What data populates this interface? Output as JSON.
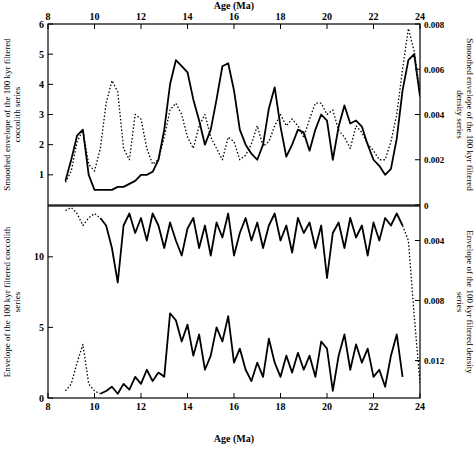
{
  "chart_data": [
    {
      "type": "line",
      "x_label": "Age (Ma)",
      "y_label": "Smoothed envelope of the 100 kyr filtered coccolith series",
      "y2_label": "Smoothed envelope of the 100 kyr filtered density series",
      "x": [
        8.75,
        9,
        9.25,
        9.5,
        9.75,
        10,
        10.25,
        10.5,
        10.75,
        11,
        11.25,
        11.5,
        11.75,
        12,
        12.25,
        12.5,
        12.75,
        13,
        13.25,
        13.5,
        13.75,
        14,
        14.25,
        14.5,
        14.75,
        15,
        15.25,
        15.5,
        15.75,
        16,
        16.25,
        16.5,
        16.75,
        17,
        17.25,
        17.5,
        17.75,
        18,
        18.25,
        18.5,
        18.75,
        19,
        19.25,
        19.5,
        19.75,
        20,
        20.25,
        20.5,
        20.75,
        21,
        21.25,
        21.5,
        21.75,
        22,
        22.25,
        22.5,
        22.75,
        23,
        23.25,
        23.5,
        23.75,
        24
      ],
      "xlim": [
        8,
        24
      ],
      "xticks": [
        8,
        10,
        12,
        14,
        16,
        18,
        20,
        22,
        24
      ],
      "ylim": [
        0,
        6
      ],
      "yticks": [
        1,
        2,
        3,
        4,
        5,
        6
      ],
      "y2lim": [
        0,
        0.008
      ],
      "y2ticks": [
        0,
        0.002,
        0.004,
        0.006,
        0.008
      ],
      "series": [
        {
          "color": "#000000",
          "line_style": "solid",
          "values": [
            0.8,
            1.5,
            2.3,
            2.5,
            1.0,
            0.5,
            0.5,
            0.5,
            0.5,
            0.6,
            0.6,
            0.7,
            0.8,
            1.0,
            1.0,
            1.1,
            1.5,
            2.5,
            4.0,
            4.8,
            4.6,
            4.4,
            3.5,
            2.8,
            2.0,
            2.5,
            3.5,
            4.6,
            4.7,
            3.8,
            2.5,
            2.0,
            1.7,
            1.5,
            2.0,
            3.2,
            3.9,
            2.6,
            1.6,
            2.0,
            2.5,
            2.4,
            1.8,
            2.5,
            3.0,
            2.8,
            1.5,
            2.6,
            3.3,
            2.7,
            2.8,
            2.6,
            2.0,
            1.5,
            1.3,
            1.0,
            1.2,
            2.2,
            3.8,
            4.8,
            5.0,
            3.6
          ]
        },
        {
          "color": "#000000",
          "line_style": "dotted",
          "axis": "y2",
          "values": [
            0.001,
            0.0015,
            0.0028,
            0.0033,
            0.0018,
            0.0015,
            0.0025,
            0.0045,
            0.0055,
            0.005,
            0.0025,
            0.002,
            0.004,
            0.0038,
            0.0025,
            0.0018,
            0.002,
            0.003,
            0.0042,
            0.0045,
            0.004,
            0.003,
            0.0025,
            0.0035,
            0.004,
            0.003,
            0.0025,
            0.002,
            0.003,
            0.0028,
            0.002,
            0.0022,
            0.0027,
            0.0035,
            0.0026,
            0.0028,
            0.0035,
            0.004,
            0.0035,
            0.0038,
            0.0035,
            0.003,
            0.0038,
            0.0045,
            0.0045,
            0.004,
            0.0042,
            0.0033,
            0.003,
            0.0025,
            0.0035,
            0.0032,
            0.0027,
            0.0024,
            0.002,
            0.002,
            0.0028,
            0.004,
            0.006,
            0.0078,
            0.0068,
            0.005
          ]
        }
      ]
    },
    {
      "type": "line",
      "x_label": "Age (Ma)",
      "y_label": "Envelope of the 100 kyr filtered coccolith series",
      "y2_label": "Envelope of the 100 kyr filtered density series",
      "x": [
        8.75,
        9,
        9.25,
        9.5,
        9.75,
        10,
        10.25,
        10.5,
        10.75,
        11,
        11.25,
        11.5,
        11.75,
        12,
        12.25,
        12.5,
        12.75,
        13,
        13.25,
        13.5,
        13.75,
        14,
        14.25,
        14.5,
        14.75,
        15,
        15.25,
        15.5,
        15.75,
        16,
        16.25,
        16.5,
        16.75,
        17,
        17.25,
        17.5,
        17.75,
        18,
        18.25,
        18.5,
        18.75,
        19,
        19.25,
        19.5,
        19.75,
        20,
        20.25,
        20.5,
        20.75,
        21,
        21.25,
        21.5,
        21.75,
        22,
        22.25,
        22.5,
        22.75,
        23,
        23.25,
        23.5,
        23.75,
        24
      ],
      "xlim": [
        8,
        24
      ],
      "xticks": [
        8,
        10,
        12,
        14,
        16,
        18,
        20,
        22,
        24
      ],
      "ylim": [
        0,
        13.6
      ],
      "yticks": [
        0,
        5,
        10
      ],
      "y2lim": [
        0.0145,
        0.0017
      ],
      "y2ticks": [
        0.004,
        0.008,
        0.012
      ],
      "series": [
        {
          "color": "#000000",
          "line_style": "solid",
          "axis": "y2",
          "values": [
            null,
            null,
            null,
            null,
            null,
            null,
            0.0025,
            0.003,
            0.0045,
            0.0068,
            0.003,
            0.0022,
            0.0035,
            0.0025,
            0.004,
            0.0022,
            0.003,
            0.0045,
            0.0028,
            0.004,
            0.005,
            0.0032,
            0.0025,
            0.0045,
            0.003,
            0.005,
            0.0028,
            0.0038,
            0.0022,
            0.005,
            0.0035,
            0.0025,
            0.004,
            0.0028,
            0.0045,
            0.003,
            0.0022,
            0.004,
            0.003,
            0.0048,
            0.0025,
            0.0035,
            0.0028,
            0.0045,
            0.003,
            0.0065,
            0.0035,
            0.0028,
            0.0045,
            0.0025,
            0.0038,
            0.003,
            0.005,
            0.0028,
            0.004,
            0.0025,
            0.003,
            0.0022,
            0.003,
            null,
            null,
            null
          ]
        },
        {
          "color": "#000000",
          "line_style": "dotted",
          "axis": "y2",
          "values": [
            0.002,
            0.0018,
            0.0022,
            0.003,
            0.0025,
            0.0022,
            0.0025,
            null,
            null,
            null,
            null,
            null,
            null,
            null,
            null,
            null,
            null,
            null,
            null,
            null,
            null,
            null,
            null,
            null,
            null,
            null,
            null,
            null,
            null,
            null,
            null,
            null,
            null,
            null,
            null,
            null,
            null,
            null,
            null,
            null,
            null,
            null,
            null,
            null,
            null,
            null,
            null,
            null,
            null,
            null,
            null,
            null,
            null,
            null,
            null,
            null,
            null,
            null,
            0.003,
            0.004,
            0.009,
            0.0135
          ]
        },
        {
          "color": "#000000",
          "line_style": "solid",
          "values": [
            null,
            null,
            null,
            null,
            null,
            null,
            0.3,
            0.5,
            0.8,
            0.3,
            1.0,
            0.6,
            1.5,
            1.0,
            2.0,
            1.2,
            1.8,
            1.5,
            6.0,
            5.5,
            4.0,
            5.2,
            3.0,
            4.5,
            2.0,
            3.0,
            5.0,
            4.0,
            5.8,
            2.5,
            3.5,
            2.0,
            1.2,
            2.5,
            1.5,
            4.2,
            2.5,
            1.5,
            3.0,
            1.8,
            3.2,
            2.0,
            3.0,
            1.5,
            4.0,
            3.5,
            0.5,
            3.0,
            4.5,
            2.0,
            3.8,
            2.5,
            3.5,
            1.5,
            2.0,
            0.8,
            3.0,
            4.5,
            1.5,
            null,
            null,
            null
          ]
        },
        {
          "color": "#000000",
          "line_style": "dotted",
          "values": [
            0.5,
            1.0,
            2.5,
            3.8,
            1.0,
            0.5,
            0.3,
            null,
            null,
            null,
            null,
            null,
            null,
            null,
            null,
            null,
            null,
            null,
            null,
            null,
            null,
            null,
            null,
            null,
            null,
            null,
            null,
            null,
            null,
            null,
            null,
            null,
            null,
            null,
            null,
            null,
            null,
            null,
            null,
            null,
            null,
            null,
            null,
            null,
            null,
            null,
            null,
            null,
            null,
            null,
            null,
            null,
            null,
            null,
            null,
            null,
            null,
            null,
            null,
            null,
            null,
            null
          ]
        }
      ]
    }
  ]
}
